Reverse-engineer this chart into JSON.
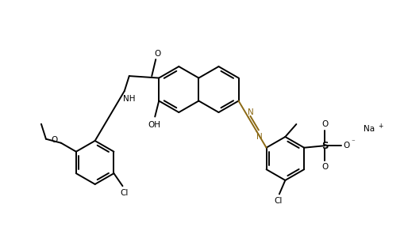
{
  "bg_color": "#ffffff",
  "bond_color": "#000000",
  "azo_color": "#8B6914",
  "lw": 1.4,
  "fs": 7.5,
  "xlim": [
    0,
    10
  ],
  "ylim": [
    0,
    6.2
  ],
  "figw": 5.09,
  "figh": 3.11,
  "dpi": 100,
  "naph_r": 0.58,
  "benz_r": 0.55
}
